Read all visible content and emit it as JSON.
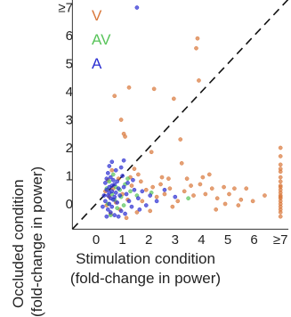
{
  "chart_data": {
    "type": "scatter",
    "xlabel_line1": "Stimulation condition",
    "xlabel_line2": "(fold-change in power)",
    "ylabel_line1": "Occluded condition",
    "ylabel_line2": "(fold-change in power)",
    "xlim": [
      -0.9,
      7.3
    ],
    "ylim": [
      -0.9,
      7.3
    ],
    "x_ticks": [
      {
        "v": 0,
        "label": "0"
      },
      {
        "v": 1,
        "label": "1"
      },
      {
        "v": 2,
        "label": "2"
      },
      {
        "v": 3,
        "label": "3"
      },
      {
        "v": 4,
        "label": "4"
      },
      {
        "v": 5,
        "label": "5"
      },
      {
        "v": 6,
        "label": "6"
      },
      {
        "v": 7,
        "label": "≥7"
      }
    ],
    "y_ticks": [
      {
        "v": 0,
        "label": "0"
      },
      {
        "v": 1,
        "label": "1"
      },
      {
        "v": 2,
        "label": "2"
      },
      {
        "v": 3,
        "label": "3"
      },
      {
        "v": 4,
        "label": "4"
      },
      {
        "v": 5,
        "label": "5"
      },
      {
        "v": 6,
        "label": "6"
      },
      {
        "v": 7,
        "label": "≥7"
      }
    ],
    "reference_line": "y = x (dashed)",
    "legend_placement": "top-left",
    "series": [
      {
        "name": "V",
        "color": "#d9773a",
        "points": [
          [
            1.25,
            4.15
          ],
          [
            2.2,
            4.1
          ],
          [
            2.95,
            3.75
          ],
          [
            3.85,
            5.9
          ],
          [
            3.8,
            5.55
          ],
          [
            3.9,
            4.4
          ],
          [
            3.2,
            2.3
          ],
          [
            3.25,
            1.45
          ],
          [
            0.7,
            3.85
          ],
          [
            0.95,
            3.0
          ],
          [
            1.05,
            2.5
          ],
          [
            1.1,
            2.4
          ],
          [
            2.1,
            1.85
          ],
          [
            1.45,
            1.25
          ],
          [
            1.6,
            1.05
          ],
          [
            2.5,
            0.95
          ],
          [
            2.75,
            0.9
          ],
          [
            3.45,
            0.9
          ],
          [
            4.05,
            0.95
          ],
          [
            4.3,
            1.05
          ],
          [
            4.4,
            0.55
          ],
          [
            4.6,
            0.2
          ],
          [
            4.9,
            0.0
          ],
          [
            5.05,
            0.35
          ],
          [
            5.5,
            0.15
          ],
          [
            5.7,
            0.55
          ],
          [
            5.95,
            0.1
          ],
          [
            4.85,
            0.6
          ],
          [
            3.7,
            0.3
          ],
          [
            3.1,
            0.1
          ],
          [
            2.6,
            0.35
          ],
          [
            2.3,
            0.25
          ],
          [
            1.9,
            0.5
          ],
          [
            1.75,
            0.1
          ],
          [
            1.55,
            -0.3
          ],
          [
            1.35,
            0.65
          ],
          [
            2.05,
            -0.25
          ],
          [
            2.45,
            0.7
          ],
          [
            3.35,
            0.45
          ],
          [
            2.9,
            -0.1
          ],
          [
            3.95,
            0.7
          ],
          [
            4.55,
            -0.2
          ],
          [
            5.25,
            0.55
          ],
          [
            1.15,
            -0.5
          ],
          [
            0.85,
            0.9
          ],
          [
            0.6,
            1.2
          ],
          [
            0.45,
            0.85
          ],
          [
            0.5,
            0.25
          ],
          [
            0.55,
            -0.35
          ],
          [
            0.75,
            0.05
          ],
          [
            0.9,
            -0.2
          ],
          [
            1.0,
            0.35
          ],
          [
            0.35,
            0.45
          ],
          [
            0.4,
            -0.05
          ],
          [
            0.65,
            0.55
          ],
          [
            1.2,
            0.15
          ],
          [
            1.3,
            0.95
          ],
          [
            1.7,
            0.8
          ],
          [
            2.15,
            0.6
          ],
          [
            2.8,
            0.55
          ],
          [
            3.6,
            0.65
          ],
          [
            4.15,
            0.35
          ],
          [
            5.4,
            -0.05
          ],
          [
            6.4,
            0.3
          ],
          [
            7.0,
            2.0
          ],
          [
            7.0,
            1.7
          ],
          [
            7.0,
            1.4
          ],
          [
            7.0,
            1.15
          ],
          [
            7.0,
            0.95
          ],
          [
            7.0,
            0.8
          ],
          [
            7.0,
            0.65
          ],
          [
            7.0,
            0.5
          ],
          [
            7.0,
            0.4
          ],
          [
            7.0,
            0.3
          ],
          [
            7.0,
            0.2
          ],
          [
            7.0,
            0.1
          ],
          [
            7.0,
            0.0
          ],
          [
            7.0,
            -0.1
          ],
          [
            7.0,
            -0.2
          ],
          [
            7.0,
            -0.3
          ],
          [
            7.0,
            -0.45
          ],
          [
            7.0,
            1.25
          ],
          [
            7.0,
            0.6
          ],
          [
            7.0,
            0.25
          ]
        ]
      },
      {
        "name": "AV",
        "color": "#58c45a",
        "points": [
          [
            0.5,
            0.8
          ],
          [
            0.6,
            0.35
          ],
          [
            0.75,
            0.6
          ],
          [
            0.95,
            0.25
          ],
          [
            1.1,
            0.7
          ],
          [
            0.45,
            0.0
          ],
          [
            0.8,
            -0.15
          ],
          [
            1.3,
            0.45
          ],
          [
            0.65,
            1.05
          ],
          [
            1.55,
            0.3
          ],
          [
            2.1,
            0.4
          ],
          [
            0.55,
            -0.4
          ],
          [
            0.9,
            0.5
          ],
          [
            1.05,
            -0.05
          ],
          [
            3.5,
            0.2
          ],
          [
            0.4,
            0.55
          ],
          [
            0.7,
            0.15
          ],
          [
            1.2,
            0.9
          ]
        ]
      },
      {
        "name": "A",
        "color": "#2b2ed1",
        "points": [
          [
            1.55,
            7.0
          ],
          [
            0.5,
            1.35
          ],
          [
            0.45,
            1.1
          ],
          [
            0.55,
            0.95
          ],
          [
            0.65,
            0.85
          ],
          [
            0.7,
            0.7
          ],
          [
            0.5,
            0.6
          ],
          [
            0.4,
            0.5
          ],
          [
            0.6,
            0.45
          ],
          [
            0.75,
            0.4
          ],
          [
            0.45,
            0.3
          ],
          [
            0.55,
            0.2
          ],
          [
            0.65,
            0.15
          ],
          [
            0.35,
            0.1
          ],
          [
            0.5,
            0.0
          ],
          [
            0.6,
            -0.1
          ],
          [
            0.45,
            -0.2
          ],
          [
            0.55,
            -0.3
          ],
          [
            0.7,
            -0.4
          ],
          [
            0.4,
            -0.45
          ],
          [
            0.85,
            0.55
          ],
          [
            0.9,
            0.3
          ],
          [
            0.8,
            0.05
          ],
          [
            0.95,
            -0.25
          ],
          [
            1.0,
            1.0
          ],
          [
            1.05,
            0.6
          ],
          [
            1.15,
            0.35
          ],
          [
            1.25,
            0.1
          ],
          [
            1.35,
            -0.1
          ],
          [
            1.45,
            0.5
          ],
          [
            1.6,
            0.2
          ],
          [
            1.75,
            0.45
          ],
          [
            1.9,
            -0.05
          ],
          [
            2.05,
            0.3
          ],
          [
            2.3,
            0.1
          ],
          [
            2.6,
            0.5
          ],
          [
            3.0,
            0.25
          ],
          [
            0.95,
            1.3
          ],
          [
            1.05,
            1.55
          ],
          [
            0.75,
            1.2
          ],
          [
            0.6,
            1.5
          ],
          [
            0.35,
            0.75
          ],
          [
            0.3,
            0.3
          ],
          [
            0.25,
            -0.1
          ],
          [
            1.2,
            0.75
          ],
          [
            1.4,
            0.85
          ],
          [
            0.85,
            -0.45
          ],
          [
            1.1,
            -0.35
          ],
          [
            0.5,
            0.4
          ],
          [
            0.7,
            0.25
          ],
          [
            0.6,
            0.65
          ],
          [
            0.4,
            0.9
          ],
          [
            0.8,
            0.8
          ],
          [
            1.65,
            -0.2
          ]
        ]
      }
    ]
  }
}
